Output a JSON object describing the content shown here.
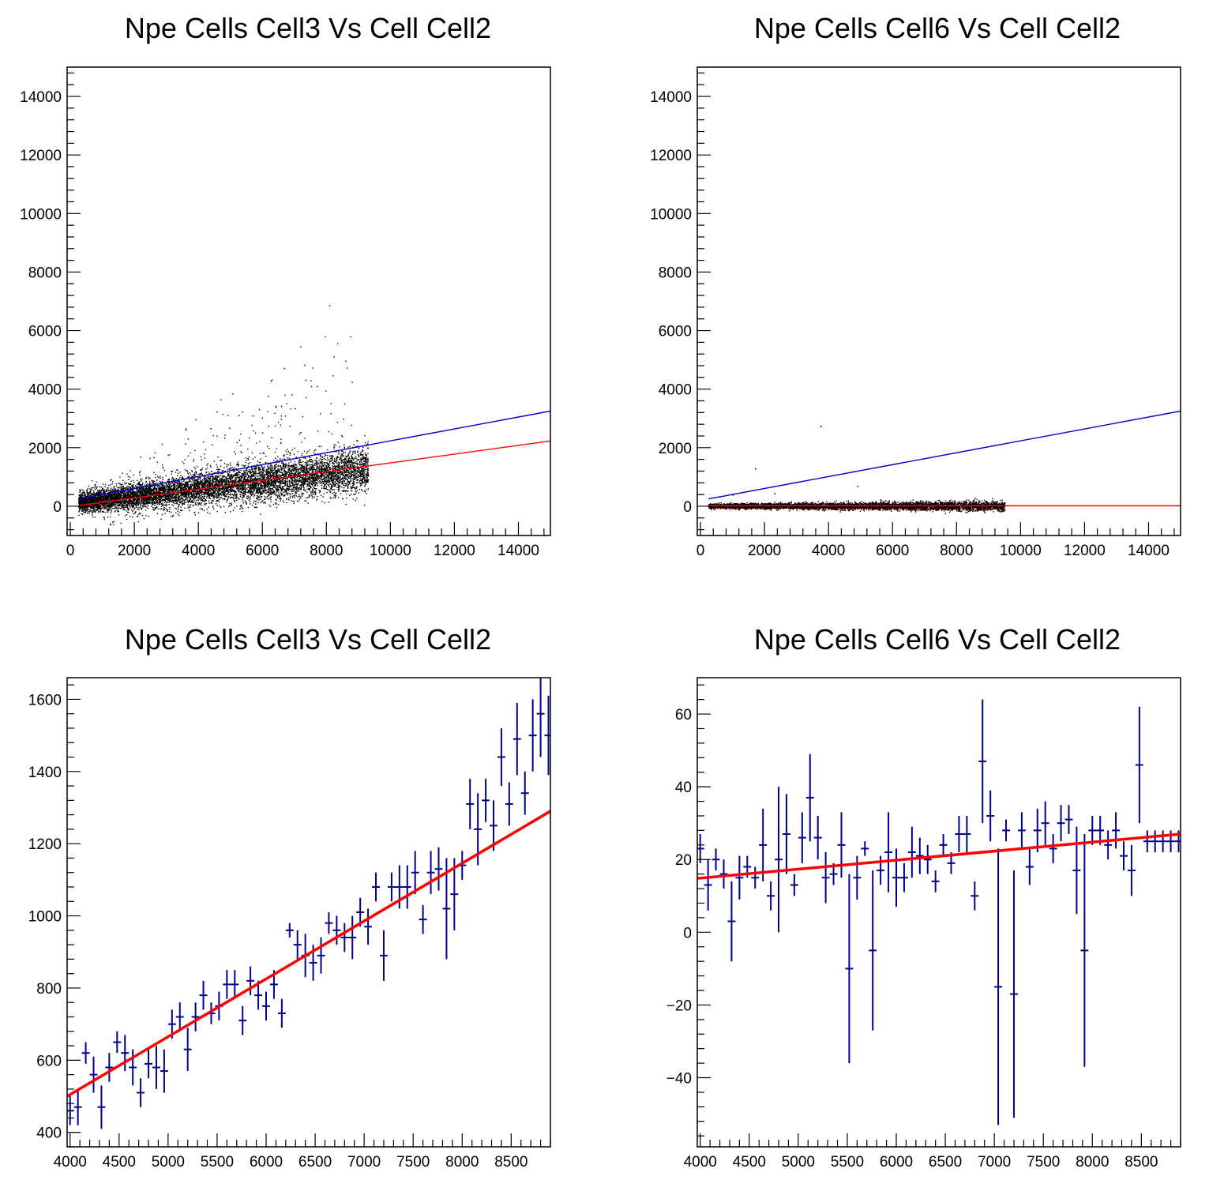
{
  "colors": {
    "frame": "#000000",
    "scatter": "#000000",
    "fit_red": "#ff0000",
    "ref_blue": "#0000cc",
    "profile": "#00008b"
  },
  "chart_data": [
    {
      "id": "top-left",
      "type": "scatter",
      "title": "Npe Cells Cell3 Vs Cell Cell2",
      "xlabel": "",
      "ylabel": "",
      "xlim": [
        -100,
        15000
      ],
      "ylim": [
        -1000,
        15000
      ],
      "xticks": [
        0,
        2000,
        4000,
        6000,
        8000,
        10000,
        12000,
        14000
      ],
      "yticks": [
        0,
        2000,
        4000,
        6000,
        8000,
        10000,
        12000,
        14000
      ],
      "grid": false,
      "cloud": {
        "x_range": [
          250,
          9300
        ],
        "main_band": {
          "y_at_x0": 100,
          "slope": 0.13,
          "spread": 280
        },
        "wide_fan": {
          "x_range": [
            1000,
            9000
          ],
          "y_max_slope": 0.85
        },
        "n_points_approx": 9000
      },
      "lines": [
        {
          "name": "",
          "color": "ref_blue",
          "x": [
            250,
            15000
          ],
          "y": [
            250,
            3250
          ]
        },
        {
          "name": "",
          "color": "fit_red",
          "x": [
            250,
            15000
          ],
          "y": [
            20,
            2230
          ]
        }
      ]
    },
    {
      "id": "top-right",
      "type": "scatter",
      "title": "Npe Cells Cell6 Vs Cell Cell2",
      "xlabel": "",
      "ylabel": "",
      "xlim": [
        -100,
        15000
      ],
      "ylim": [
        -1000,
        15000
      ],
      "xticks": [
        0,
        2000,
        4000,
        6000,
        8000,
        10000,
        12000,
        14000
      ],
      "yticks": [
        0,
        2000,
        4000,
        6000,
        8000,
        10000,
        12000,
        14000
      ],
      "grid": false,
      "cloud": {
        "x_range": [
          250,
          9500
        ],
        "main_band": {
          "y_at_x0": 20,
          "slope": 0.0,
          "spread": 60
        },
        "outliers": [
          [
            3750,
            2750
          ],
          [
            1700,
            1300
          ],
          [
            1000,
            400
          ],
          [
            4900,
            700
          ],
          [
            2300,
            450
          ]
        ],
        "n_points_approx": 6000
      },
      "lines": [
        {
          "name": "",
          "color": "ref_blue",
          "x": [
            250,
            15000
          ],
          "y": [
            250,
            3250
          ]
        },
        {
          "name": "",
          "color": "fit_red",
          "x": [
            250,
            15000
          ],
          "y": [
            15,
            15
          ]
        }
      ]
    },
    {
      "id": "bottom-left",
      "type": "errorbar",
      "title": "Npe Cells Cell3 Vs Cell Cell2",
      "xlabel": "",
      "ylabel": "",
      "xlim": [
        3970,
        8900
      ],
      "ylim": [
        360,
        1660
      ],
      "xticks": [
        4000,
        4500,
        5000,
        5500,
        6000,
        6500,
        7000,
        7500,
        8000,
        8500
      ],
      "yticks": [
        400,
        600,
        800,
        1000,
        1200,
        1400,
        1600
      ],
      "grid": false,
      "bin_halfwidth": 40,
      "points": {
        "x": [
          4000,
          4080,
          4160,
          4240,
          4320,
          4400,
          4480,
          4560,
          4640,
          4720,
          4800,
          4880,
          4960,
          5040,
          5120,
          5200,
          5280,
          5360,
          5440,
          5520,
          5600,
          5680,
          5760,
          5840,
          5920,
          6000,
          6080,
          6160,
          6240,
          6320,
          6400,
          6480,
          6560,
          6640,
          6720,
          6800,
          6880,
          6960,
          7040,
          7120,
          7200,
          7280,
          7360,
          7440,
          7520,
          7600,
          7680,
          7760,
          7840,
          7920,
          8000,
          8080,
          8160,
          8240,
          8320,
          8400,
          8480,
          8560,
          8640,
          8720,
          8800,
          8880
        ],
        "y": [
          460,
          470,
          620,
          560,
          470,
          580,
          650,
          620,
          580,
          510,
          590,
          580,
          570,
          700,
          720,
          630,
          720,
          780,
          730,
          750,
          810,
          810,
          710,
          820,
          780,
          750,
          810,
          730,
          960,
          920,
          890,
          870,
          890,
          980,
          960,
          940,
          940,
          1010,
          970,
          1080,
          890,
          1080,
          1080,
          1080,
          1120,
          990,
          1120,
          1130,
          1020,
          1060,
          1140,
          1310,
          1240,
          1320,
          1250,
          1440,
          1310,
          1490,
          1340,
          1500,
          1560,
          1500
        ],
        "err": [
          40,
          50,
          30,
          50,
          60,
          40,
          30,
          50,
          50,
          40,
          40,
          60,
          60,
          40,
          40,
          60,
          40,
          40,
          30,
          40,
          40,
          40,
          40,
          40,
          40,
          40,
          40,
          40,
          20,
          40,
          60,
          50,
          50,
          30,
          40,
          40,
          60,
          40,
          50,
          40,
          70,
          40,
          60,
          60,
          60,
          40,
          60,
          60,
          140,
          100,
          40,
          70,
          100,
          60,
          70,
          80,
          60,
          100,
          60,
          100,
          120,
          110
        ]
      },
      "fit": {
        "name": "",
        "x": [
          3970,
          8900
        ],
        "y": [
          500,
          1290
        ]
      }
    },
    {
      "id": "bottom-right",
      "type": "errorbar",
      "title": "Npe Cells Cell6 Vs Cell Cell2",
      "xlabel": "",
      "ylabel": "",
      "xlim": [
        3970,
        8900
      ],
      "ylim": [
        -59,
        70
      ],
      "xticks": [
        4000,
        4500,
        5000,
        5500,
        6000,
        6500,
        7000,
        7500,
        8000,
        8500
      ],
      "yticks": [
        -40,
        -20,
        0,
        20,
        40,
        60
      ],
      "grid": false,
      "bin_halfwidth": 40,
      "points": {
        "x": [
          4000,
          4080,
          4160,
          4240,
          4320,
          4400,
          4480,
          4560,
          4640,
          4720,
          4800,
          4880,
          4960,
          5040,
          5120,
          5200,
          5280,
          5360,
          5440,
          5520,
          5600,
          5680,
          5760,
          5840,
          5920,
          6000,
          6080,
          6160,
          6240,
          6320,
          6400,
          6480,
          6560,
          6640,
          6720,
          6800,
          6880,
          6960,
          7040,
          7120,
          7200,
          7280,
          7360,
          7440,
          7520,
          7600,
          7680,
          7760,
          7840,
          7920,
          8000,
          8080,
          8160,
          8240,
          8320,
          8400,
          8480,
          8560,
          8640,
          8720,
          8800,
          8880
        ],
        "y": [
          23,
          13,
          20,
          16,
          3,
          15,
          18,
          15,
          24,
          10,
          20,
          27,
          13,
          26,
          37,
          26,
          15,
          16,
          24,
          -10,
          15,
          23,
          -5,
          17,
          22,
          15,
          15,
          22,
          21,
          20,
          14,
          24,
          19,
          27,
          27,
          10,
          47,
          32,
          -15,
          28,
          -17,
          28,
          18,
          28,
          30,
          23,
          30,
          31,
          17,
          -5,
          28,
          28,
          24,
          28,
          21,
          17,
          46,
          25,
          25,
          25,
          25,
          25
        ],
        "err": [
          4,
          7,
          3,
          4,
          11,
          6,
          3,
          3,
          10,
          4,
          20,
          11,
          3,
          7,
          12,
          6,
          7,
          3,
          9,
          26,
          6,
          2,
          22,
          4,
          11,
          8,
          4,
          7,
          5,
          4,
          3,
          3,
          3,
          5,
          5,
          4,
          17,
          7,
          38,
          3,
          34,
          5,
          5,
          6,
          6,
          4,
          5,
          4,
          12,
          32,
          4,
          4,
          4,
          5,
          4,
          7,
          16,
          3,
          3,
          3,
          3,
          3
        ]
      },
      "fit": {
        "name": "",
        "x": [
          3970,
          8900
        ],
        "y": [
          14.8,
          27.0
        ]
      }
    }
  ]
}
